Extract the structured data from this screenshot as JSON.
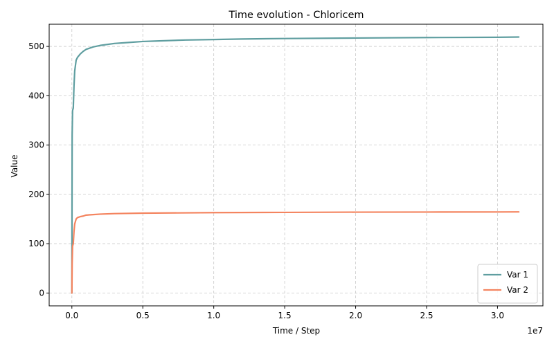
{
  "chart_data": {
    "type": "line",
    "title": "Time evolution - Chloricem",
    "xlabel": "Time / Step",
    "ylabel": "Value",
    "x_offset_label": "1e7",
    "xlim": [
      -1600000,
      33200000
    ],
    "ylim": [
      -26,
      545
    ],
    "xticks": [
      0,
      5000000,
      10000000,
      15000000,
      20000000,
      25000000,
      30000000
    ],
    "xtick_labels": [
      "0.0",
      "0.5",
      "1.0",
      "1.5",
      "2.0",
      "2.5",
      "3.0"
    ],
    "yticks": [
      0,
      100,
      200,
      300,
      400,
      500
    ],
    "ytick_labels": [
      "0",
      "100",
      "200",
      "300",
      "400",
      "500"
    ],
    "grid": true,
    "legend_position": "bottom-right",
    "series": [
      {
        "name": "Var 1",
        "color": "#5f9ea0",
        "x": [
          0,
          20000,
          50000,
          100000,
          150000,
          200000,
          300000,
          400000,
          600000,
          800000,
          1000000,
          1500000,
          2000000,
          3000000,
          4000000,
          5000000,
          6000000,
          8000000,
          10000000,
          12000000,
          15000000,
          20000000,
          25000000,
          30000000,
          31500000
        ],
        "y": [
          0,
          320,
          370,
          375,
          420,
          450,
          472,
          478,
          485,
          490,
          494,
          499,
          502,
          506,
          508,
          510,
          511,
          513,
          514,
          515,
          516,
          517,
          518,
          518.5,
          519
        ]
      },
      {
        "name": "Var 2",
        "color": "#f4845f",
        "x": [
          0,
          20000,
          50000,
          100000,
          150000,
          200000,
          300000,
          400000,
          600000,
          800000,
          1000000,
          1500000,
          2000000,
          3000000,
          5000000,
          10000000,
          15000000,
          20000000,
          25000000,
          30000000,
          31500000
        ],
        "y": [
          0,
          60,
          95,
          100,
          125,
          140,
          150,
          153,
          155,
          156,
          158,
          159,
          160,
          161,
          162,
          163,
          163.5,
          164,
          164.2,
          164.4,
          164.5
        ]
      }
    ]
  }
}
